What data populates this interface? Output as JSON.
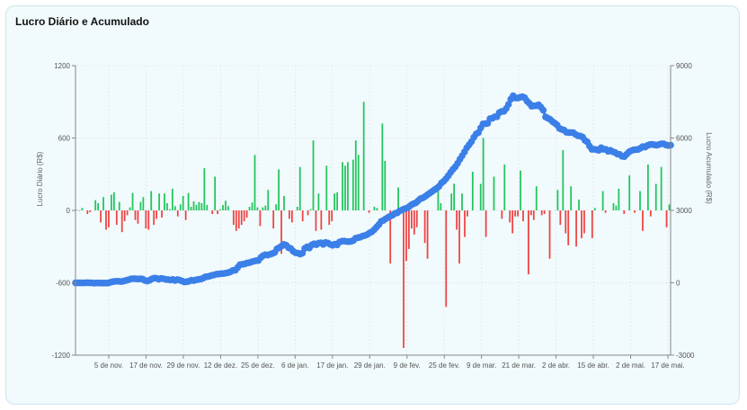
{
  "chart_data": {
    "type": "bar+line",
    "title": "Lucro Diário e Acumulado",
    "ylabel_left": "Lucro Diário (R$)",
    "ylabel_right": "Lucro Acumulado (R$)",
    "ylim_left": [
      -1200,
      1200
    ],
    "ylim_right": [
      -3000,
      9000
    ],
    "yticks_left": [
      "1200",
      "600",
      "0",
      "-600",
      "-1200"
    ],
    "yticks_right": [
      "9000",
      "6000",
      "3000",
      "0",
      "-3000"
    ],
    "grid": true,
    "x_tick_labels": [
      "5 de nov.",
      "17 de nov.",
      "29 de nov.",
      "12 de dez.",
      "25 de dez.",
      "6 de jan.",
      "17 de jan.",
      "29 de jan.",
      "9 de fev.",
      "25 de fev.",
      "9 de mar.",
      "21 de mar.",
      "2 de abr.",
      "15 de abr.",
      "2 de mai.",
      "17 de mai."
    ],
    "colors": {
      "positive": "#22c55e",
      "negative": "#ef4444",
      "line": "#3b7fe8"
    },
    "series": [
      {
        "kind": "bar",
        "axis": "left",
        "values": [
          5,
          -4,
          20,
          0,
          -30,
          -15,
          0,
          85,
          60,
          -100,
          110,
          -160,
          -140,
          130,
          150,
          -120,
          70,
          -180,
          -90,
          -40,
          25,
          145,
          -80,
          -110,
          70,
          110,
          -150,
          -160,
          160,
          -120,
          -70,
          140,
          -60,
          140,
          60,
          10,
          180,
          35,
          -50,
          50,
          120,
          -80,
          145,
          30,
          75,
          45,
          70,
          60,
          350,
          45,
          0,
          -30,
          280,
          -30,
          10,
          45,
          80,
          35,
          0,
          -120,
          -170,
          -150,
          -120,
          -90,
          -60,
          30,
          65,
          460,
          25,
          -130,
          25,
          40,
          170,
          0,
          -150,
          50,
          340,
          -360,
          120,
          0,
          -70,
          -100,
          0,
          30,
          360,
          -90,
          0,
          -40,
          10,
          580,
          -170,
          140,
          -160,
          0,
          370,
          -120,
          -90,
          140,
          150,
          0,
          400,
          370,
          400,
          0,
          420,
          580,
          460,
          0,
          900,
          0,
          -20,
          0,
          30,
          20,
          0,
          720,
          410,
          0,
          -440,
          0,
          0,
          190,
          0,
          -1140,
          -420,
          -320,
          -150,
          -200,
          -140,
          0,
          0,
          -270,
          -400,
          0,
          0,
          0,
          220,
          60,
          0,
          -800,
          0,
          140,
          220,
          -160,
          -440,
          140,
          -220,
          -50,
          0,
          320,
          0,
          0,
          220,
          600,
          -220,
          0,
          0,
          280,
          0,
          0,
          -70,
          380,
          0,
          -100,
          -190,
          -50,
          -50,
          330,
          -90,
          0,
          -530,
          -40,
          -80,
          200,
          0,
          -40,
          -30,
          0,
          -400,
          0,
          0,
          170,
          -120,
          500,
          -190,
          -290,
          200,
          0,
          -300,
          90,
          -230,
          -190,
          0,
          0,
          -230,
          20,
          0,
          0,
          160,
          -20,
          0,
          0,
          60,
          40,
          180,
          0,
          -30,
          0,
          290,
          0,
          -20,
          0,
          160,
          -170,
          0,
          380,
          -50,
          0,
          220,
          0,
          360,
          0,
          -140,
          50
        ]
      },
      {
        "kind": "line",
        "axis": "right",
        "values": [
          -1,
          -3,
          -2,
          -5,
          -4,
          2,
          -3,
          -1,
          -17,
          -8,
          -9,
          -12,
          -11,
          -10,
          -10,
          18,
          43,
          58,
          65,
          57,
          51,
          79,
          101,
          127,
          163,
          169,
          165,
          158,
          167,
          152,
          95,
          71,
          105,
          160,
          194,
          184,
          148,
          182,
          168,
          138,
          132,
          112,
          136,
          96,
          132,
          111,
          72,
          35,
          45,
          63,
          105,
          90,
          117,
          136,
          151,
          183,
          246,
          253,
          279,
          309,
          327,
          359,
          367,
          378,
          382,
          405,
          423,
          458,
          517,
          519,
          631,
          747,
          768,
          781,
          818,
          833,
          865,
          894,
          914,
          924,
          1045,
          1124,
          1163,
          1146,
          1181,
          1212,
          1255,
          1404,
          1461,
          1522,
          1593,
          1553,
          1454,
          1417,
          1307,
          1244,
          1230,
          1191,
          1229,
          1430,
          1490,
          1443,
          1566,
          1616,
          1579,
          1643,
          1655,
          1592,
          1671,
          1649,
          1593,
          1555,
          1602,
          1574,
          1688,
          1721,
          1733,
          1710,
          1709,
          1717,
          1752,
          1846,
          1872,
          1890,
          1935,
          1961,
          1999,
          2066,
          2113,
          2203,
          2309,
          2410,
          2546,
          2586,
          2655,
          2713,
          2761,
          2805,
          2876,
          2901,
          2980,
          3016,
          3064,
          3089,
          3146,
          3226,
          3276,
          3313,
          3404,
          3488,
          3521,
          3574,
          3648,
          3715,
          3783,
          3856,
          3915,
          3995,
          4135,
          4210,
          4313,
          4436,
          4578,
          4702,
          4806,
          4948,
          5116,
          5266,
          5427,
          5599,
          5725,
          5850,
          6024,
          6164,
          6228,
          6419,
          6584,
          6594,
          6609,
          6803,
          6819,
          6880,
          6881,
          7050,
          7100,
          7105,
          7225,
          7397,
          7611,
          7752,
          7662,
          7658,
          7690,
          7712,
          7671,
          7530,
          7438,
          7318,
          7335,
          7339,
          7376,
          7275,
          7154,
          6874,
          6821,
          6772,
          6679,
          6615,
          6539,
          6400,
          6357,
          6330,
          6238,
          6225,
          6225,
          6221,
          6149,
          6093,
          6083,
          6038,
          5904,
          5838,
          5669,
          5530,
          5534,
          5518,
          5491,
          5598,
          5530,
          5533,
          5450,
          5491,
          5432,
          5401,
          5335,
          5323,
          5242,
          5229,
          5325,
          5422,
          5474,
          5508,
          5519,
          5527,
          5578,
          5646,
          5624,
          5691,
          5727,
          5735,
          5719,
          5703,
          5730,
          5760,
          5762,
          5715,
          5692,
          5703
        ]
      }
    ]
  }
}
